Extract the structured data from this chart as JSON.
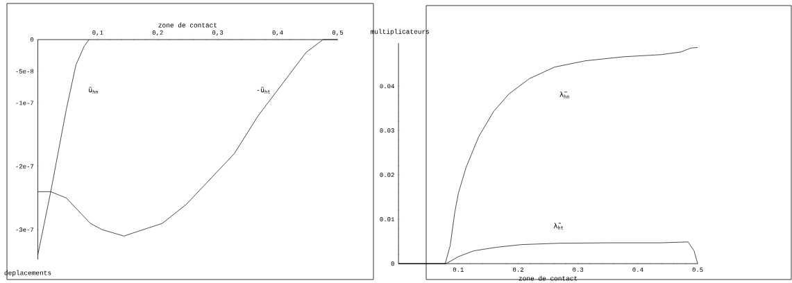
{
  "chart_data": [
    {
      "type": "line",
      "xlabel": "zone de contact",
      "ylabel": "deplacements",
      "xlim": [
        0,
        0.5
      ],
      "ylim": [
        -3.47e-07,
        0
      ],
      "xticks": [
        {
          "value": 0.1,
          "label": "0,1"
        },
        {
          "value": 0.2,
          "label": "0,2"
        },
        {
          "value": 0.3,
          "label": "0,3"
        },
        {
          "value": 0.4,
          "label": "0,4"
        },
        {
          "value": 0.5,
          "label": "0,5"
        }
      ],
      "yticks": [
        {
          "value": 0,
          "label": "0"
        },
        {
          "value": -5e-08,
          "label": "-5e-8"
        },
        {
          "value": -1e-07,
          "label": "-1e-7"
        },
        {
          "value": -2e-07,
          "label": "-2e-7"
        },
        {
          "value": -3e-07,
          "label": "-3e-7"
        }
      ],
      "series": [
        {
          "color": "#000000",
          "x": [
            0,
            0.0216,
            0.0476,
            0.0636,
            0.0776,
            0.0856
          ],
          "values": [
            -3.4e-07,
            -2.4e-07,
            -1.1e-07,
            -4e-08,
            -1e-08,
            0
          ]
        },
        {
          "color": "#000000",
          "x": [
            0,
            0.0216,
            0.0476,
            0.0676,
            0.0876,
            0.1076,
            0.1436,
            0.1756,
            0.2076,
            0.2476,
            0.2876,
            0.3276,
            0.3676,
            0.4076,
            0.4476,
            0.4756,
            0.4876,
            0.5
          ],
          "values": [
            -2.4e-07,
            -2.4e-07,
            -2.5e-07,
            -2.7e-07,
            -2.9e-07,
            -3e-07,
            -3.1e-07,
            -3e-07,
            -2.9e-07,
            -2.6e-07,
            -2.2e-07,
            -1.8e-07,
            -1.2e-07,
            -7e-08,
            -2e-08,
            0,
            0,
            0
          ]
        }
      ],
      "annotations": [
        "ũ$_{hn}$",
        "-ũ$_{ht}$"
      ],
      "grid": false
    },
    {
      "type": "line",
      "xlabel": "zone de contact",
      "ylabel": "multiplicateurs",
      "xlim": [
        0,
        0.5
      ],
      "ylim": [
        0,
        0.0497
      ],
      "xticks": [
        0.1,
        0.2,
        0.3,
        0.4,
        0.5
      ],
      "yticks": [
        0,
        0.01,
        0.02,
        0.03,
        0.04
      ],
      "series": [
        {
          "color": "#000000",
          "x": [
            0,
            0.078,
            0.0863,
            0.0939,
            0.1003,
            0.113,
            0.134,
            0.159,
            0.185,
            0.219,
            0.261,
            0.312,
            0.375,
            0.439,
            0.472,
            0.489,
            0.5
          ],
          "values": [
            0,
            0,
            0.004,
            0.0114,
            0.016,
            0.0217,
            0.0286,
            0.0343,
            0.0383,
            0.0417,
            0.0443,
            0.0457,
            0.0466,
            0.0471,
            0.0477,
            0.0486,
            0.0487
          ]
        },
        {
          "color": "#000000",
          "x": [
            0,
            0.079,
            0.0876,
            0.1003,
            0.126,
            0.164,
            0.206,
            0.269,
            0.354,
            0.439,
            0.484,
            0.494,
            0.5
          ],
          "values": [
            0,
            0,
            0.0006,
            0.0016,
            0.0029,
            0.0037,
            0.0043,
            0.0046,
            0.0047,
            0.0047,
            0.0049,
            0.0029,
            0
          ]
        }
      ],
      "annotations": [
        "λ̃$_{hn}$",
        "λ̃$_{ht}$"
      ],
      "grid": false
    }
  ]
}
